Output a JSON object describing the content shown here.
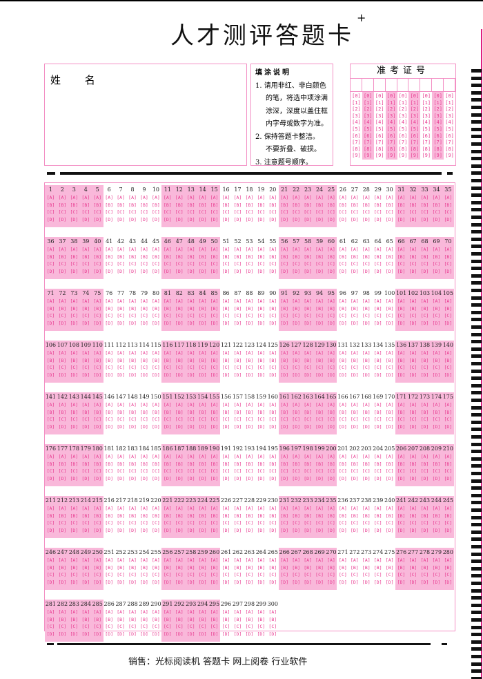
{
  "header": {
    "title": "人才测评答题卡",
    "corner_mark": "+"
  },
  "name_box": {
    "label": "姓 名"
  },
  "instructions": {
    "heading": "填涂说明",
    "lines": [
      "1. 请用非红、非白颜色",
      "的笔，将选中项涂满",
      "涂深，深度以盖住框",
      "内字母或数字为准。",
      "2. 保持答题卡整洁。",
      "不要折叠、破损。",
      "3. 注意题号顺序。"
    ]
  },
  "exam_id": {
    "title": "准考证号",
    "columns": 9,
    "digits": [
      "0",
      "1",
      "2",
      "3",
      "4",
      "5",
      "6",
      "7",
      "8",
      "9"
    ]
  },
  "answers": {
    "question_count": 300,
    "per_row": 35,
    "group_size": 5,
    "options": [
      "A",
      "B",
      "C",
      "D"
    ]
  },
  "footer": {
    "text": "销售：光标阅读机 答题卡 网上阅卷 行业软件"
  },
  "colors": {
    "pink_fill": "#f9b8da",
    "pink_border": "#f38fc4",
    "option_text": "#e8388f"
  }
}
